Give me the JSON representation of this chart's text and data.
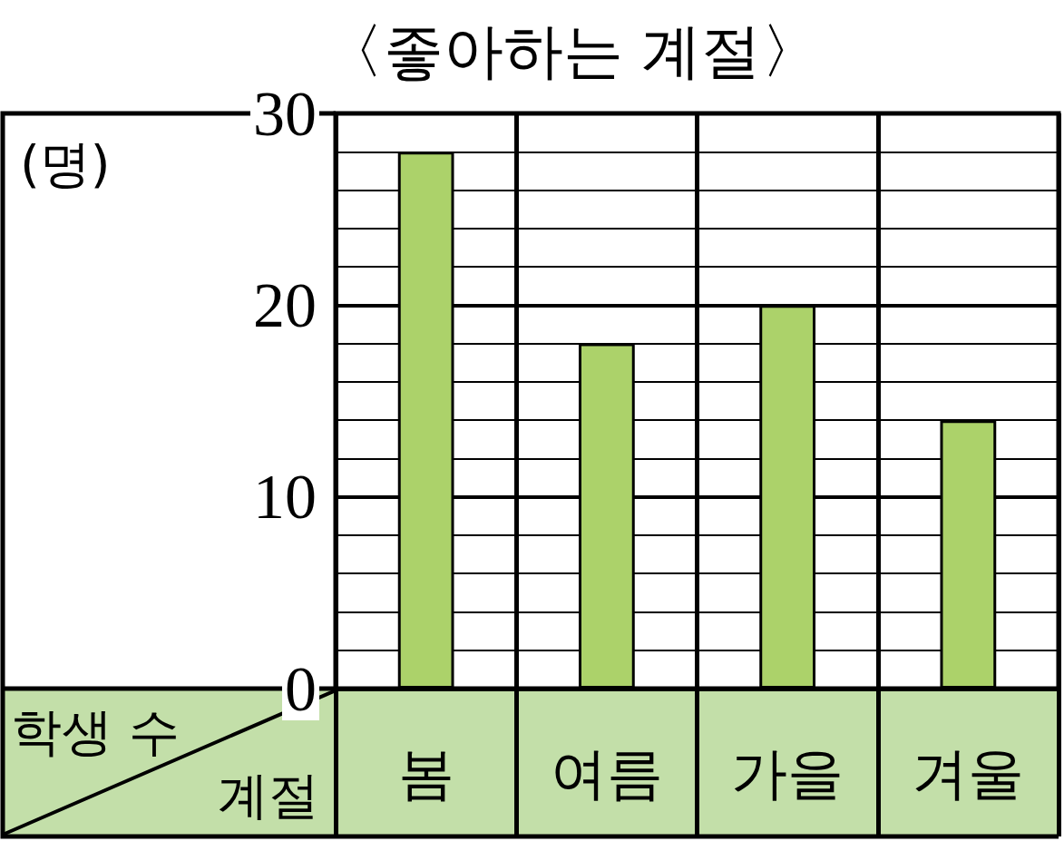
{
  "chart_data": {
    "type": "bar",
    "title": "〈좋아하는 계절〉",
    "xlabel": "계절",
    "ylabel": "학생 수",
    "annotations": [
      "(명)"
    ],
    "categories": [
      "봄",
      "여름",
      "가을",
      "겨울"
    ],
    "values": [
      28,
      18,
      20,
      14
    ],
    "color": "#acd26a",
    "ylim": [
      0,
      30
    ],
    "yticks": [
      0,
      {
        "value": 2,
        "label": null
      },
      {
        "value": 4,
        "label": null
      },
      {
        "value": 6,
        "label": null
      },
      {
        "value": 8,
        "label": null
      },
      10,
      {
        "value": 12,
        "label": null
      },
      {
        "value": 14,
        "label": null
      },
      {
        "value": 16,
        "label": null
      },
      {
        "value": 18,
        "label": null
      },
      20,
      {
        "value": 22,
        "label": null
      },
      {
        "value": 24,
        "label": null
      },
      {
        "value": 26,
        "label": null
      },
      {
        "value": 28,
        "label": null
      },
      30
    ],
    "grid": true
  }
}
